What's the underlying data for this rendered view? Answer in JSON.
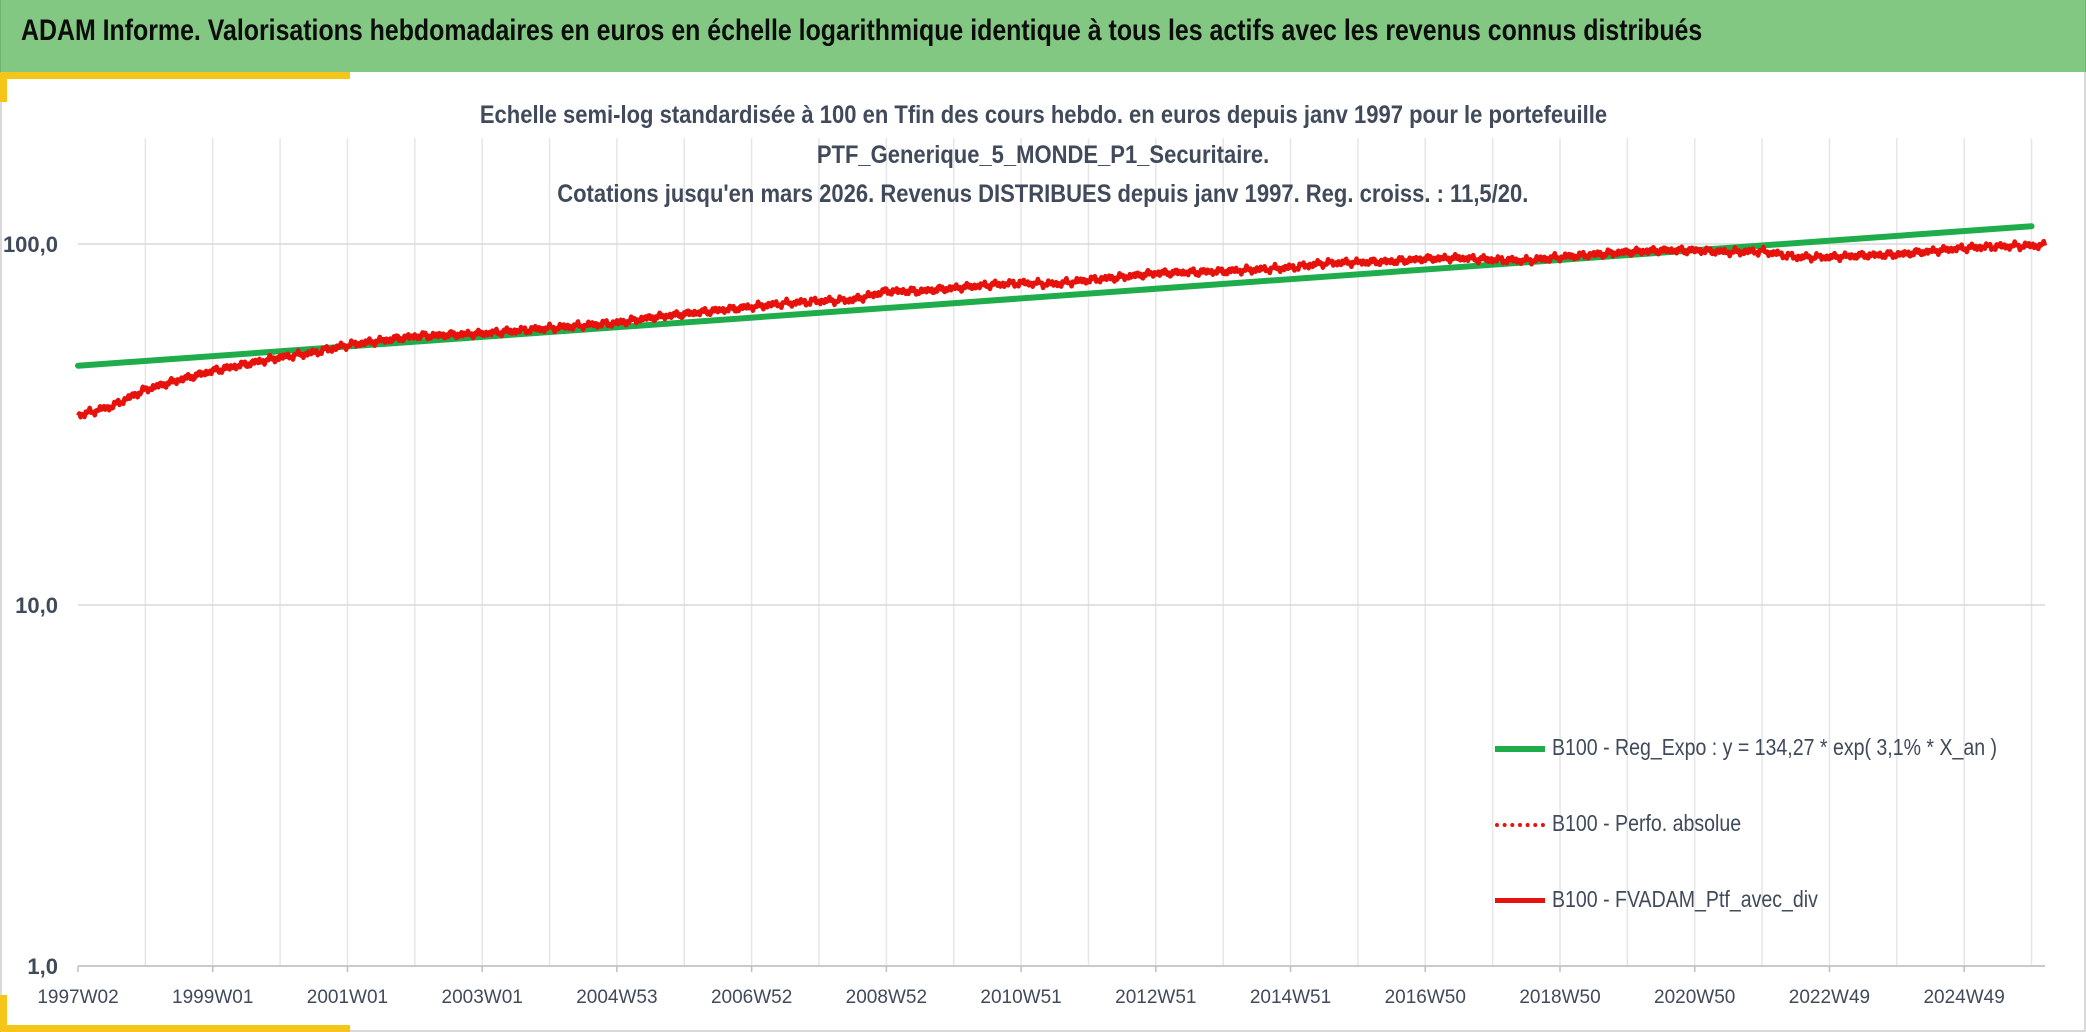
{
  "header": {
    "title": "ADAM Informe. Valorisations hebdomadaires en euros en échelle logarithmique identique à tous les actifs avec les revenus connus distribués"
  },
  "colors": {
    "header_bg": "#82c882",
    "accent": "#f5c518",
    "series_regression": "#1fad4c",
    "series_red": "#e8120c"
  },
  "chart_data": {
    "type": "line",
    "title_lines": [
      "Echelle semi-log standardisée à 100 en Tfin des cours hebdo. en euros depuis janv 1997 pour le portefeuille",
      "PTF_Generique_5_MONDE_P1_Securitaire.",
      "Cotations jusqu'en mars 2026. Revenus DISTRIBUES depuis janv 1997. Reg. croiss. : 11,5/20."
    ],
    "y_scale": "log",
    "ylim": [
      1,
      200
    ],
    "y_ticks": [
      {
        "value": 100,
        "label": "100,0"
      },
      {
        "value": 10,
        "label": "10,0"
      },
      {
        "value": 1,
        "label": "1,0"
      }
    ],
    "xlim": [
      1997.0,
      2026.2
    ],
    "x_ticks": [
      {
        "value": 1997.0,
        "label": "1997W02"
      },
      {
        "value": 1999.0,
        "label": "1999W01"
      },
      {
        "value": 2001.0,
        "label": "2001W01"
      },
      {
        "value": 2003.0,
        "label": "2003W01"
      },
      {
        "value": 2005.0,
        "label": "2004W53"
      },
      {
        "value": 2007.0,
        "label": "2006W52"
      },
      {
        "value": 2009.0,
        "label": "2008W52"
      },
      {
        "value": 2011.0,
        "label": "2010W51"
      },
      {
        "value": 2013.0,
        "label": "2012W51"
      },
      {
        "value": 2015.0,
        "label": "2014W51"
      },
      {
        "value": 2017.0,
        "label": "2016W50"
      },
      {
        "value": 2019.0,
        "label": "2018W50"
      },
      {
        "value": 2021.0,
        "label": "2020W50"
      },
      {
        "value": 2023.0,
        "label": "2022W49"
      },
      {
        "value": 2025.0,
        "label": "2024W49"
      }
    ],
    "legend_position": "bottom-right",
    "series": [
      {
        "name": "B100 - Reg_Expo : y = 134,27 * exp( 3,1% *  X_an )",
        "style": "solid-thick",
        "color": "#1fad4c",
        "x": [
          1997.0,
          2026.0
        ],
        "values": [
          46,
          112
        ]
      },
      {
        "name": "B100 - Perfo. absolue",
        "style": "dotted",
        "color": "#e8120c",
        "x": [],
        "values": []
      },
      {
        "name": "B100 - FVADAM_Ptf_avec_div",
        "style": "solid",
        "color": "#e8120c",
        "x": [
          1997.0,
          1997.5,
          1998.0,
          1998.5,
          1999.0,
          1999.5,
          2000.0,
          2000.5,
          2001.0,
          2001.5,
          2002.0,
          2002.5,
          2003.0,
          2003.5,
          2004.0,
          2004.5,
          2005.0,
          2005.5,
          2006.0,
          2006.5,
          2007.0,
          2007.5,
          2008.0,
          2008.5,
          2009.0,
          2009.5,
          2010.0,
          2010.5,
          2011.0,
          2011.5,
          2012.0,
          2012.5,
          2013.0,
          2013.5,
          2014.0,
          2014.5,
          2015.0,
          2015.5,
          2016.0,
          2016.5,
          2017.0,
          2017.5,
          2018.0,
          2018.5,
          2019.0,
          2019.5,
          2020.0,
          2020.5,
          2021.0,
          2021.5,
          2022.0,
          2022.5,
          2023.0,
          2023.5,
          2024.0,
          2024.5,
          2025.0,
          2025.5,
          2026.0,
          2026.2
        ],
        "values": [
          33.5,
          35.5,
          39.5,
          42,
          44.5,
          46.5,
          48.5,
          50,
          52.5,
          54,
          55.5,
          56,
          56.5,
          57.5,
          58.5,
          59.5,
          60.5,
          62.5,
          64,
          65.5,
          67,
          68.5,
          69.5,
          70,
          74,
          74,
          75.5,
          77,
          78,
          77.5,
          79.5,
          81,
          83,
          83.5,
          84,
          85,
          86,
          88.5,
          89,
          89.5,
          91,
          91.5,
          90.5,
          90,
          92,
          93.5,
          95,
          96,
          96,
          95,
          95.5,
          92,
          92,
          93,
          93.5,
          95.5,
          97.5,
          98.5,
          99,
          99
        ]
      }
    ]
  }
}
